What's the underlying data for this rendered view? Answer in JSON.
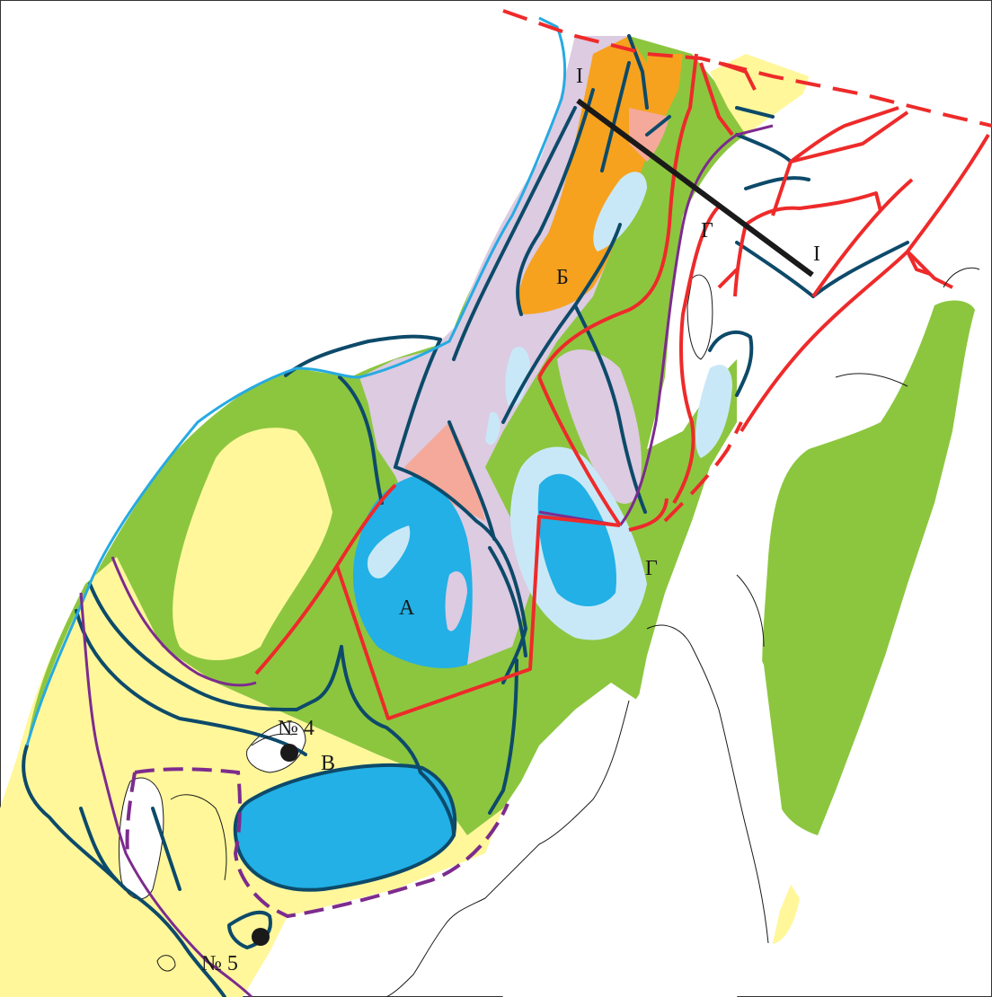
{
  "map": {
    "zone_labels": {
      "a": "А",
      "b": "Б",
      "v": "В",
      "g_north": "Г",
      "g_south": "Г"
    },
    "section_line": {
      "start_label": "I",
      "end_label": "I"
    },
    "wells": [
      {
        "label": "№ 4"
      },
      {
        "label": "№ 5"
      }
    ],
    "colors": {
      "green_zone": "#8cc63f",
      "yellow_zone": "#fff79a",
      "orange_zone": "#f6a21e",
      "lilac_zone": "#dccbe1",
      "salmon_zone": "#f4a99a",
      "blue_zone": "#22b0e6",
      "light_blue_zone": "#c9e8f7",
      "contour_dark": "#0d4a6a",
      "coastline_blue": "#27aae1",
      "boundary_red": "#ee2a2a",
      "boundary_purple": "#7d2b8e",
      "section_line": "#1a1a1a",
      "shore_outline": "#1a1a1a"
    }
  }
}
